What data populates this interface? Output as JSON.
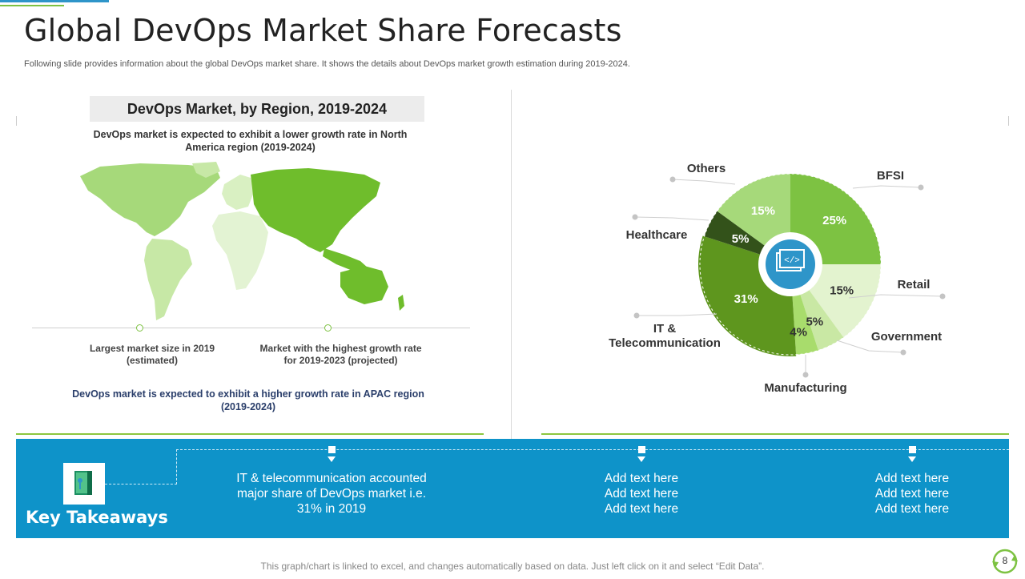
{
  "slide": {
    "title": "Global DevOps Market Share Forecasts",
    "subtitle": "Following slide provides information about the global DevOps market share. It shows the details about DevOps market growth estimation during 2019-2024.",
    "page_number": "8",
    "footer": "This graph/chart is linked to excel, and changes automatically based on data. Just left click on it and select “Edit Data”."
  },
  "region": {
    "heading": "DevOps Market, by Region, 2019-2024",
    "top_note": "DevOps  market is expected to exhibit a lower growth rate in North America region (2019-2024)",
    "caption_left": "Largest market size in 2019 (estimated)",
    "caption_right": "Market with the highest growth rate for 2019-2023 (projected)",
    "bottom_note": "DevOps  market is expected to exhibit a higher growth rate in APAC region (2019-2024)"
  },
  "chart_data": {
    "type": "pie",
    "title": "",
    "center_icon": "code-window-icon",
    "slices": [
      {
        "label": "BFSI",
        "value": 25,
        "display": "25%",
        "color": "#7dc242",
        "text_color": "#ffffff"
      },
      {
        "label": "Retail",
        "value": 15,
        "display": "15%",
        "color": "#e3f3cf",
        "text_color": "#333333"
      },
      {
        "label": "Government",
        "value": 5,
        "display": "5%",
        "color": "#c9e8a4",
        "text_color": "#333333"
      },
      {
        "label": "Manufacturing",
        "value": 4,
        "display": "4%",
        "color": "#a8dc6c",
        "text_color": "#333333"
      },
      {
        "label": "IT & Telecommunication",
        "value": 31,
        "display": "31%",
        "color": "#5e961e",
        "text_color": "#ffffff"
      },
      {
        "label": "Healthcare",
        "value": 5,
        "display": "5%",
        "color": "#33521a",
        "text_color": "#ffffff"
      },
      {
        "label": "Others",
        "value": 15,
        "display": "15%",
        "color": "#a6d97a",
        "text_color": "#ffffff"
      }
    ]
  },
  "takeaways": {
    "title": "Key Takeaways",
    "icon": "book-icon",
    "items": [
      "IT & telecommunication accounted major share of DevOps market i.e. 31% in 2019",
      "Add text here\nAdd text here\nAdd text here",
      "Add text here\nAdd text here\nAdd text here"
    ]
  },
  "colors": {
    "accent_blue": "#0e93c9",
    "accent_green": "#7dc242"
  }
}
